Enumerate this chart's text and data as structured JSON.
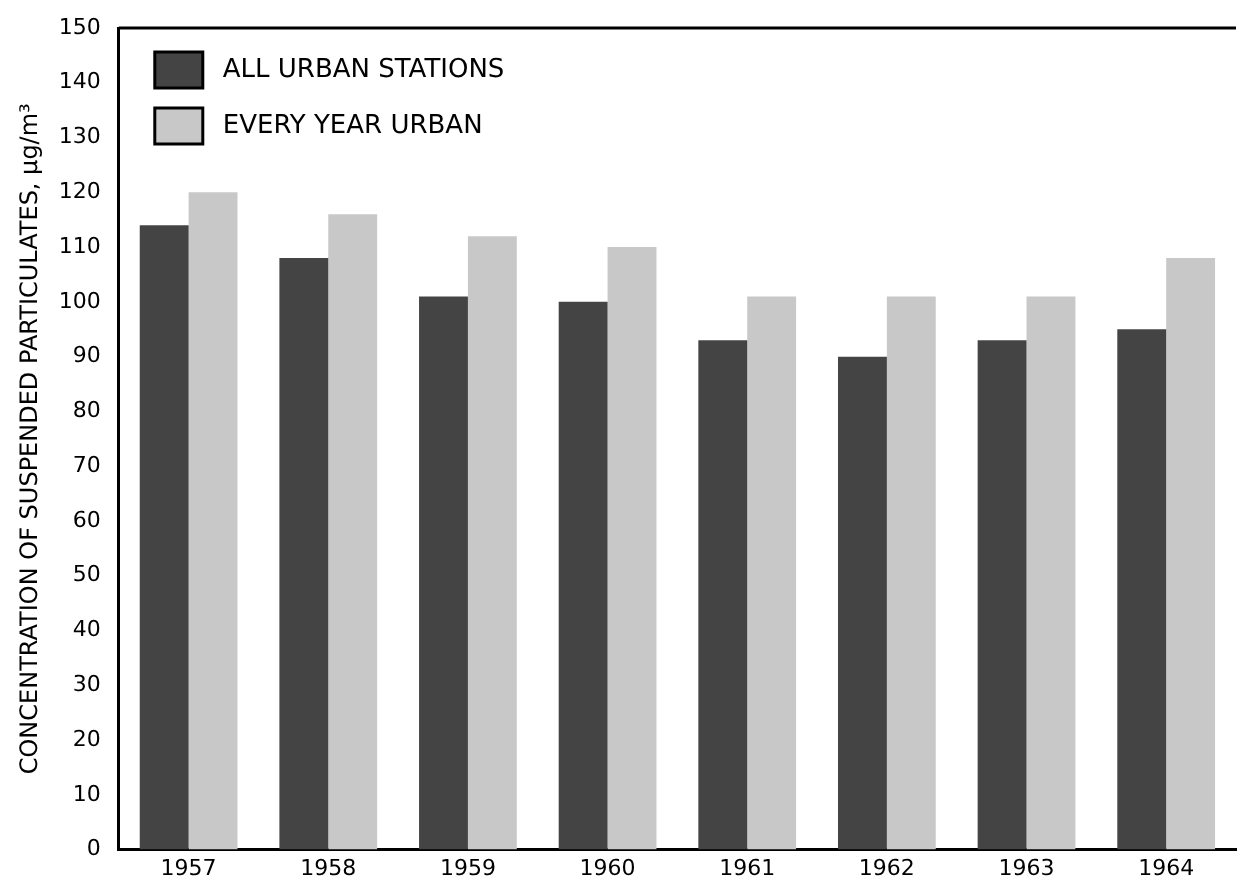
{
  "chart_data": {
    "type": "bar",
    "ylabel": "CONCENTRATION OF SUSPENDED PARTICULATES, µg/m³",
    "categories": [
      "1957",
      "1958",
      "1959",
      "1960",
      "1961",
      "1962",
      "1963",
      "1964"
    ],
    "series": [
      {
        "name": "ALL URBAN STATIONS",
        "color": "#444444",
        "values": [
          114,
          108,
          101,
          100,
          93,
          90,
          93,
          95
        ]
      },
      {
        "name": "EVERY YEAR URBAN",
        "color": "#c8c8c8",
        "values": [
          120,
          116,
          112,
          110,
          101,
          101,
          101,
          108
        ]
      }
    ],
    "ylim": [
      0,
      150
    ],
    "yticks": [
      0,
      10,
      20,
      30,
      40,
      50,
      60,
      70,
      80,
      90,
      100,
      110,
      120,
      130,
      140,
      150
    ],
    "grid": false,
    "legend": "top left"
  }
}
